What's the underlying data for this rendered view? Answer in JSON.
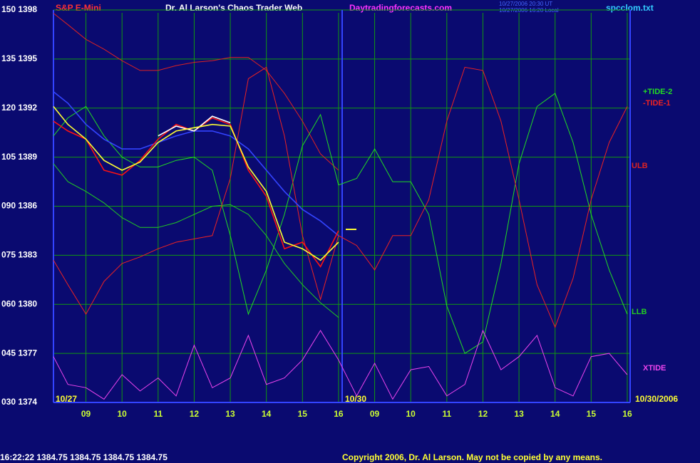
{
  "header": {
    "symbol": "S&P E-Mini",
    "title": "Dr. Al Larson's Chaos Trader Web",
    "site": "Daytradingforecasts.com",
    "stamp_ut": "10/27/2006 20:30 UT",
    "stamp_local": "10/27/2006 16:20 Local",
    "file": "spcclom.txt"
  },
  "footer": {
    "quote": "16:22:22  1384.75  1384.75  1384.75  1384.75",
    "copyright": "Copyright 2006, Dr. Al Larson. May not be copied by any means."
  },
  "chart_data": {
    "type": "line",
    "date_labels": [
      "10/27",
      "10/30",
      "10/30/2006"
    ],
    "xlim": [
      8.1,
      24.08
    ],
    "ylim": [
      1374,
      1398
    ],
    "grid": true,
    "xticks": [
      {
        "value": 9,
        "label": "09"
      },
      10,
      11,
      12,
      13,
      14,
      15,
      16,
      {
        "value": 17,
        "label": "09"
      },
      {
        "value": 18,
        "label": "10"
      },
      {
        "value": 19,
        "label": "11"
      },
      {
        "value": 20,
        "label": "12"
      },
      {
        "value": 21,
        "label": "13"
      },
      {
        "value": 22,
        "label": "14"
      },
      {
        "value": 23,
        "label": "15"
      },
      {
        "value": 24,
        "label": "16"
      }
    ],
    "yticks": [
      {
        "value": 1398,
        "label": "150 1398"
      },
      {
        "value": 1395,
        "label": "135 1395"
      },
      {
        "value": 1392,
        "label": "120 1392"
      },
      {
        "value": 1389,
        "label": "105 1389"
      },
      {
        "value": 1386,
        "label": "090 1386"
      },
      {
        "value": 1383,
        "label": "075 1383"
      },
      {
        "value": 1380,
        "label": "060 1380"
      },
      {
        "value": 1377,
        "label": "045 1377"
      },
      {
        "value": 1374,
        "label": "030 1374"
      }
    ],
    "x": [
      8.1,
      8.5,
      9,
      9.5,
      10,
      10.5,
      11,
      11.5,
      12,
      12.5,
      13,
      13.5,
      14,
      14.5,
      15,
      15.5,
      16,
      16.5,
      17,
      17.5,
      18,
      18.5,
      19,
      19.5,
      20,
      20.5,
      21,
      21.5,
      22,
      22.5,
      23,
      23.5,
      24
    ],
    "series": [
      {
        "name": "ULB",
        "color": "#dd2222",
        "values": [
          1397.8,
          1397.1,
          1396.2,
          1395.6,
          1394.9,
          1394.3,
          1394.3,
          1394.6,
          1394.8,
          1394.9,
          1395.1,
          1395.1,
          1394.3,
          1392.9,
          1391.2,
          1389.2,
          1388.2,
          null,
          null,
          null,
          null,
          null,
          null,
          null,
          null,
          null,
          null,
          null,
          null,
          null,
          null,
          null,
          null
        ]
      },
      {
        "name": "LLB",
        "color": "#22cc22",
        "values": [
          1388.6,
          1387.5,
          1386.9,
          1386.2,
          1385.3,
          1384.7,
          1384.7,
          1385.0,
          1385.5,
          1386.0,
          1386.1,
          1385.5,
          1384.2,
          1382.5,
          1381.2,
          1380.1,
          1379.2,
          null,
          null,
          null,
          null,
          null,
          null,
          null,
          null,
          null,
          null,
          null,
          null,
          null,
          null,
          null,
          null
        ]
      },
      {
        "name": "+TIDE-2",
        "color": "#22dd22",
        "values": [
          1390.3,
          1391.4,
          1392.1,
          1390.3,
          1389.0,
          1388.4,
          1388.4,
          1388.8,
          1389.0,
          1388.2,
          1384.2,
          1379.4,
          1382.1,
          1385.5,
          1389.7,
          1391.6,
          1387.3,
          1387.7,
          1389.5,
          1387.5,
          1387.5,
          1385.5,
          1379.9,
          1377.0,
          1377.7,
          1382.5,
          1388.6,
          1392.1,
          1392.9,
          1389.9,
          1385.5,
          1382.1,
          1379.4
        ]
      },
      {
        "name": "-TIDE-1",
        "color": "#ee2222",
        "values": [
          1382.7,
          1381.2,
          1379.4,
          1381.4,
          1382.5,
          1382.9,
          1383.4,
          1383.8,
          1384.0,
          1384.2,
          1387.7,
          1393.8,
          1394.5,
          1390.3,
          1384.2,
          1380.3,
          1384.2,
          1383.6,
          1382.1,
          1384.2,
          1384.2,
          1386.4,
          1391.2,
          1394.5,
          1394.3,
          1391.2,
          1386.4,
          1381.2,
          1378.6,
          1381.6,
          1386.4,
          1389.9,
          1392.1
        ]
      },
      {
        "name": "XTIDE",
        "color": "#ee44ee",
        "values": [
          1376.8,
          1375.1,
          1374.9,
          1374.2,
          1375.7,
          1374.7,
          1375.5,
          1374.4,
          1377.5,
          1374.9,
          1375.5,
          1378.1,
          1375.1,
          1375.5,
          1376.6,
          1378.4,
          1376.6,
          1374.4,
          1376.4,
          1374.2,
          1376.0,
          1376.2,
          1374.4,
          1375.1,
          1378.4,
          1376.0,
          1376.8,
          1378.1,
          1374.9,
          1374.4,
          1376.8,
          1377.0,
          1375.7
        ]
      },
      {
        "color": "#3344ff",
        "values": [
          1393.0,
          1392.3,
          1391.0,
          1390.1,
          1389.5,
          1389.5,
          1389.9,
          1390.3,
          1390.6,
          1390.6,
          1390.3,
          1389.5,
          1388.2,
          1386.9,
          1385.8,
          1385.1,
          1384.2,
          null,
          null,
          null,
          null,
          null,
          null,
          null,
          null,
          null,
          null,
          null,
          null,
          null,
          null,
          null,
          null
        ]
      },
      {
        "color": "#ff1111",
        "values": [
          1391.2,
          1390.6,
          1390.1,
          1388.2,
          1387.9,
          1388.8,
          1390.1,
          1391.0,
          1390.6,
          1391.4,
          1391.0,
          1388.2,
          1386.6,
          1383.4,
          1383.8,
          1382.3,
          1384.5,
          null,
          null,
          null,
          null,
          null,
          null,
          null,
          null,
          null,
          null,
          null,
          null,
          null,
          null,
          null,
          null
        ]
      },
      {
        "color": "#ffffff",
        "values": [
          null,
          null,
          null,
          null,
          null,
          null,
          1390.3,
          1390.9,
          1390.6,
          1391.5,
          1391.1,
          null,
          null,
          null,
          null,
          null,
          null,
          null,
          null,
          null,
          null,
          null,
          null,
          null,
          null,
          null,
          null,
          null,
          null,
          null,
          null,
          null,
          null
        ]
      },
      {
        "color": "#ffff33",
        "values": [
          1392.1,
          1391.0,
          1390.1,
          1388.8,
          1388.2,
          1388.7,
          1389.9,
          1390.6,
          1390.8,
          1391.0,
          1390.9,
          1388.4,
          1386.9,
          1383.8,
          1383.4,
          1382.7,
          1383.8,
          null,
          null,
          null,
          null,
          null,
          null,
          null,
          null,
          null,
          null,
          null,
          null,
          null,
          null,
          null,
          null
        ]
      }
    ]
  }
}
